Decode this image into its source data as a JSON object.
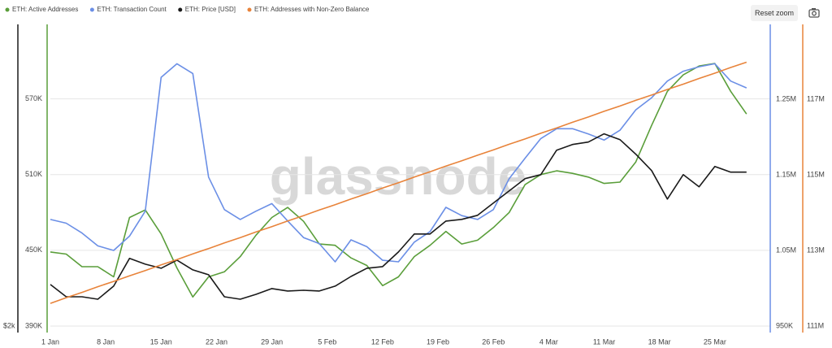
{
  "chart_data": {
    "type": "line",
    "watermark": "glassnode",
    "controls": {
      "reset_zoom": "Reset zoom"
    },
    "x": [
      1,
      3,
      5,
      7,
      9,
      11,
      13,
      15,
      17,
      19,
      21,
      23,
      25,
      27,
      29,
      31,
      33,
      35,
      37,
      39,
      41,
      43,
      45,
      47,
      49,
      51,
      53,
      55,
      57,
      59,
      61,
      63,
      65,
      67,
      69,
      71,
      73,
      75,
      77,
      79,
      81,
      83,
      85,
      87,
      89
    ],
    "xlim": [
      1,
      92
    ],
    "xticks": [
      {
        "value": 1,
        "label": "1 Jan"
      },
      {
        "value": 8,
        "label": "8 Jan"
      },
      {
        "value": 15,
        "label": "15 Jan"
      },
      {
        "value": 22,
        "label": "22 Jan"
      },
      {
        "value": 29,
        "label": "29 Jan"
      },
      {
        "value": 36,
        "label": "5 Feb"
      },
      {
        "value": 43,
        "label": "12 Feb"
      },
      {
        "value": 50,
        "label": "19 Feb"
      },
      {
        "value": 57,
        "label": "26 Feb"
      },
      {
        "value": 64,
        "label": "4 Mar"
      },
      {
        "value": 71,
        "label": "11 Mar"
      },
      {
        "value": 78,
        "label": "18 Mar"
      },
      {
        "value": 85,
        "label": "25 Mar"
      }
    ],
    "ylim": [
      390000,
      629000
    ],
    "yticks": [
      {
        "value": 390000,
        "label": "390K"
      },
      {
        "value": 450000,
        "label": "450K"
      },
      {
        "value": 510000,
        "label": "510K"
      },
      {
        "value": 570000,
        "label": "570K"
      }
    ],
    "y2lim": [
      950000,
      1349000
    ],
    "y2ticks": [
      {
        "value": 950000,
        "label": "950K"
      },
      {
        "value": 1050000,
        "label": "1.05M"
      },
      {
        "value": 1150000,
        "label": "1.15M"
      },
      {
        "value": 1250000,
        "label": "1.25M"
      }
    ],
    "y3lim": [
      2000,
      5100
    ],
    "y3ticks": [
      {
        "value": 2000,
        "label": "$2k"
      }
    ],
    "y4lim": [
      111000000,
      118980000
    ],
    "y4ticks": [
      {
        "value": 111000000,
        "label": "111M"
      },
      {
        "value": 113000000,
        "label": "113M"
      },
      {
        "value": 115000000,
        "label": "115M"
      },
      {
        "value": 117000000,
        "label": "117M"
      }
    ],
    "grid": true,
    "series": [
      {
        "name": "ETH: Active Addresses",
        "color": "#5a9e3a",
        "axis": "y",
        "values": [
          448700,
          447000,
          437000,
          437000,
          429000,
          476000,
          482000,
          463000,
          436000,
          413000,
          429000,
          433000,
          445000,
          462000,
          476000,
          484000,
          473000,
          455000,
          454000,
          444000,
          438000,
          422000,
          429000,
          445000,
          454000,
          465000,
          455000,
          458000,
          468000,
          480000,
          502000,
          510000,
          513000,
          511000,
          508000,
          503000,
          504000,
          520000,
          549000,
          576000,
          589000,
          596000,
          598000,
          576000,
          558000
        ]
      },
      {
        "name": "ETH: Transaction Count",
        "color": "#6b8fe6",
        "axis": "y2",
        "values": [
          1091000,
          1086000,
          1073000,
          1056000,
          1050000,
          1069000,
          1102000,
          1279000,
          1297000,
          1284000,
          1147000,
          1104000,
          1091000,
          1102000,
          1112000,
          1089000,
          1067000,
          1059000,
          1035000,
          1064000,
          1055000,
          1037000,
          1035000,
          1061000,
          1075000,
          1107000,
          1096000,
          1091000,
          1104000,
          1145000,
          1172000,
          1198000,
          1211000,
          1211000,
          1204000,
          1196000,
          1209000,
          1236000,
          1252000,
          1274000,
          1287000,
          1293000,
          1297000,
          1274000,
          1265000
        ]
      },
      {
        "name": "ETH: Price [USD]",
        "color": "#1a1a1a",
        "axis": "y3",
        "values": [
          2427,
          2301,
          2301,
          2276,
          2410,
          2695,
          2636,
          2594,
          2678,
          2577,
          2527,
          2301,
          2276,
          2326,
          2385,
          2360,
          2368,
          2360,
          2410,
          2510,
          2594,
          2611,
          2761,
          2946,
          2946,
          3079,
          3096,
          3138,
          3264,
          3389,
          3515,
          3556,
          3807,
          3866,
          3891,
          3975,
          3916,
          3766,
          3598,
          3305,
          3556,
          3431,
          3640,
          3582,
          3582
        ]
      },
      {
        "name": "ETH: Addresses with Non-Zero Balance",
        "color": "#e8833a",
        "axis": "y4",
        "values": [
          111600000,
          111750000,
          111890000,
          112040000,
          112180000,
          112330000,
          112470000,
          112620000,
          112760000,
          112910000,
          113050000,
          113200000,
          113340000,
          113490000,
          113630000,
          113780000,
          113920000,
          114070000,
          114210000,
          114360000,
          114500000,
          114650000,
          114790000,
          114940000,
          115080000,
          115230000,
          115370000,
          115520000,
          115660000,
          115810000,
          115950000,
          116100000,
          116240000,
          116390000,
          116530000,
          116680000,
          116820000,
          116970000,
          117110000,
          117260000,
          117400000,
          117550000,
          117690000,
          117840000,
          117980000
        ]
      }
    ]
  }
}
